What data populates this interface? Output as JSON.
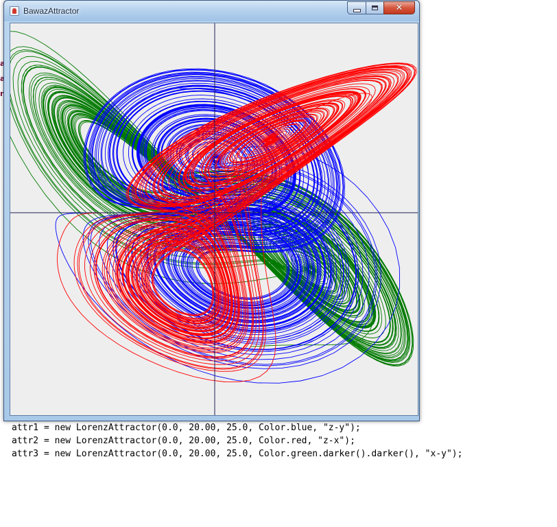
{
  "window": {
    "title": "BawazAttractor"
  },
  "background_window": {
    "letters": [
      "a",
      "a",
      "n"
    ]
  },
  "attractors": [
    {
      "color": "#0000ff",
      "projection": "z-y"
    },
    {
      "color": "#ff0000",
      "projection": "z-x"
    },
    {
      "color": "#007a00",
      "projection": "x-y"
    }
  ],
  "code_lines": [
    "attr1 = new LorenzAttractor(0.0, 20.00, 25.0, Color.blue, \"z-y\");",
    "attr2 = new LorenzAttractor(0.0, 20.00, 25.0, Color.red, \"z-x\");",
    "attr3 = new LorenzAttractor(0.0, 20.00, 25.0, Color.green.darker().darker(), \"x-y\");"
  ]
}
